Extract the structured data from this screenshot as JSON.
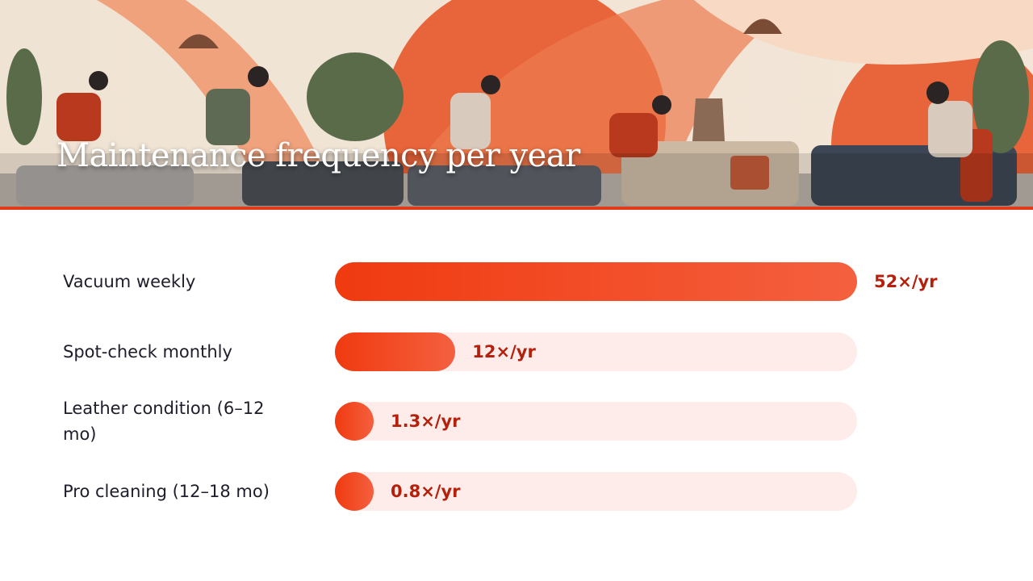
{
  "chart_data": {
    "type": "bar",
    "orientation": "horizontal",
    "title": "Maintenance frequency per year",
    "categories": [
      "Vacuum weekly",
      "Spot-check monthly",
      "Leather condition (6–12 mo)",
      "Pro cleaning (12–18 mo)"
    ],
    "values": [
      52,
      12,
      1.3,
      0.8
    ],
    "value_labels": [
      "52×/yr",
      "12×/yr",
      "1.3×/yr",
      "0.8×/yr"
    ],
    "xlim": [
      0,
      52
    ],
    "color": "#f03a10"
  }
}
